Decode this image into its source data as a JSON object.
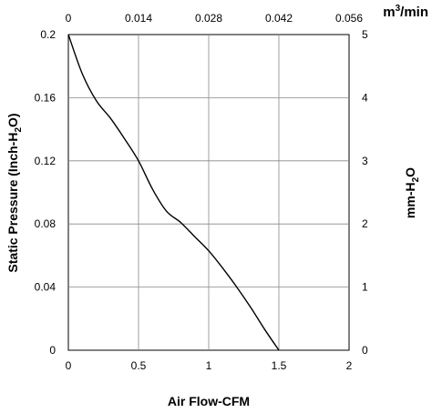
{
  "chart_data": {
    "type": "line",
    "xlabel": "Air Flow-CFM",
    "ylabel_left": {
      "main": "Static Pressure (Inch-H",
      "sub": "2",
      "tail": "O)"
    },
    "ylabel_right": {
      "main": "mm-H",
      "sub": "2",
      "tail": "O"
    },
    "top_axis_unit": {
      "main": "m",
      "sup": "3",
      "tail": "/min"
    },
    "xlim": [
      0,
      2
    ],
    "ylim": [
      0,
      0.2
    ],
    "x_ticks": [
      "0",
      "0.5",
      "1",
      "1.5",
      "2"
    ],
    "x_tick_values": [
      0,
      0.5,
      1,
      1.5,
      2
    ],
    "y_left_ticks": [
      "0",
      "0.04",
      "0.08",
      "0.12",
      "0.16",
      "0.2"
    ],
    "y_left_tick_values": [
      0,
      0.04,
      0.08,
      0.12,
      0.16,
      0.2
    ],
    "x_top_ticks": [
      "0",
      "0.014",
      "0.028",
      "0.042",
      "0.056"
    ],
    "y_right_ticks": [
      "0",
      "1",
      "2",
      "3",
      "4",
      "5"
    ],
    "grid": true,
    "line_color": "#000000",
    "grid_color": "#888888",
    "series": [
      {
        "x": [
          0,
          0.1,
          0.2,
          0.3,
          0.4,
          0.5,
          0.6,
          0.7,
          0.8,
          0.9,
          1.0,
          1.1,
          1.2,
          1.3,
          1.4,
          1.5
        ],
        "y": [
          0.2,
          0.175,
          0.158,
          0.147,
          0.134,
          0.12,
          0.102,
          0.088,
          0.081,
          0.072,
          0.063,
          0.052,
          0.04,
          0.027,
          0.013,
          0.0
        ]
      }
    ]
  }
}
